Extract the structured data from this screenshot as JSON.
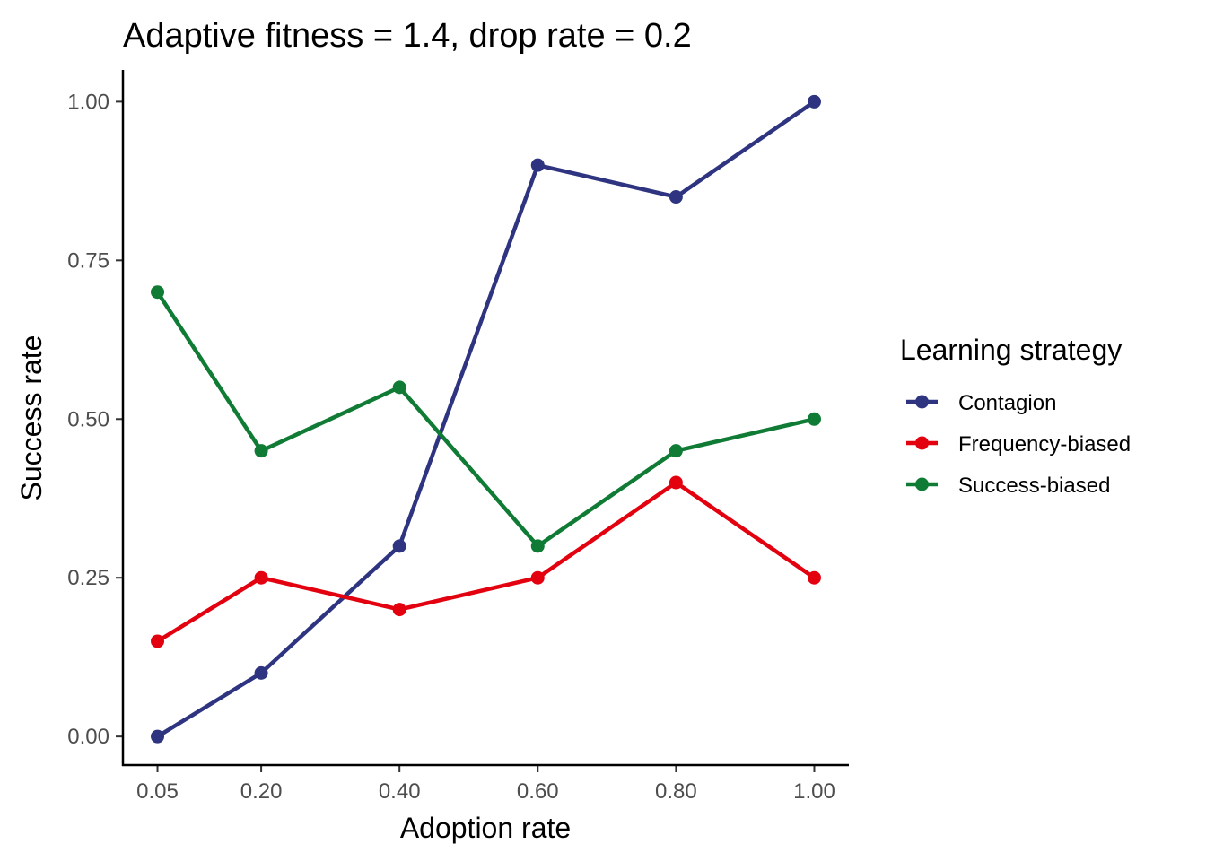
{
  "chart_data": {
    "type": "line",
    "title": "Adaptive fitness = 1.4, drop rate = 0.2",
    "xlabel": "Adoption rate",
    "ylabel": "Success rate",
    "x": [
      0.05,
      0.2,
      0.4,
      0.6,
      0.8,
      1.0
    ],
    "x_tick_labels": [
      "0.05",
      "0.20",
      "0.40",
      "0.60",
      "0.80",
      "1.00"
    ],
    "y_ticks": [
      0.0,
      0.25,
      0.5,
      0.75,
      1.0
    ],
    "y_tick_labels": [
      "0.00",
      "0.25",
      "0.50",
      "0.75",
      "1.00"
    ],
    "xlim": [
      0.0,
      1.05
    ],
    "ylim": [
      -0.045,
      1.05
    ],
    "grid": false,
    "legend": {
      "title": "Learning strategy",
      "placement": "right"
    },
    "series": [
      {
        "name": "Contagion",
        "color": "#2e3480",
        "values": [
          0.0,
          0.1,
          0.3,
          0.9,
          0.85,
          1.0
        ]
      },
      {
        "name": "Frequency-biased",
        "color": "#e3000f",
        "values": [
          0.15,
          0.25,
          0.2,
          0.25,
          0.4,
          0.25
        ]
      },
      {
        "name": "Success-biased",
        "color": "#0f7b35",
        "values": [
          0.7,
          0.45,
          0.55,
          0.3,
          0.45,
          0.5
        ]
      }
    ]
  }
}
